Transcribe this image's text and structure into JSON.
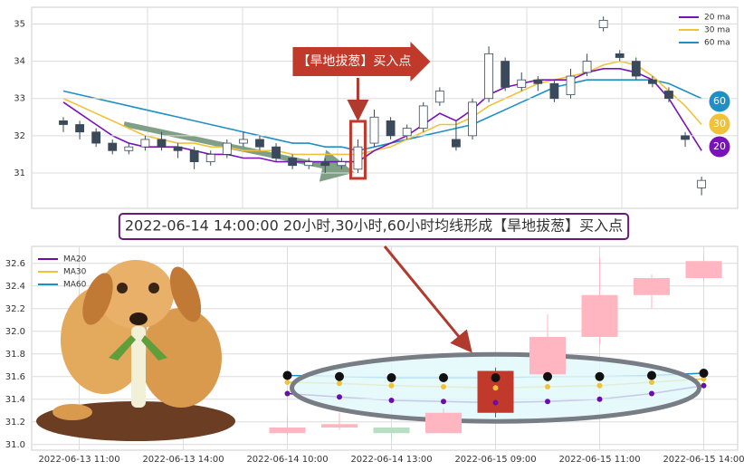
{
  "chart_data": [
    {
      "type": "candlestick",
      "open": [
        32.4,
        32.3,
        32.1,
        31.8,
        31.6,
        31.7,
        31.9,
        31.7,
        31.6,
        31.3,
        31.5,
        31.8,
        31.9,
        31.7,
        31.4,
        31.2,
        31.3,
        31.2,
        31.1,
        31.8,
        32.4,
        32.0,
        32.2,
        32.9,
        31.9,
        32.0,
        33.0,
        34.0,
        33.3,
        33.5,
        33.4,
        33.1,
        33.7,
        34.9,
        34.2,
        34.0,
        33.5,
        33.2,
        32.0,
        30.6
      ],
      "high": [
        32.5,
        32.4,
        32.2,
        31.9,
        31.8,
        32.0,
        32.1,
        31.8,
        31.7,
        31.6,
        31.9,
        32.1,
        32.0,
        31.8,
        31.5,
        31.4,
        31.4,
        31.4,
        31.9,
        32.7,
        32.5,
        32.3,
        32.9,
        33.3,
        32.4,
        33.0,
        34.4,
        34.1,
        33.7,
        33.6,
        33.5,
        33.8,
        34.2,
        35.2,
        34.3,
        34.1,
        33.6,
        33.3,
        32.1,
        30.9
      ],
      "low": [
        32.1,
        31.9,
        31.7,
        31.5,
        31.5,
        31.6,
        31.6,
        31.4,
        31.1,
        31.2,
        31.4,
        31.7,
        31.6,
        31.3,
        31.1,
        31.1,
        31.0,
        31.1,
        31.0,
        31.7,
        31.9,
        31.9,
        32.1,
        32.8,
        31.6,
        31.9,
        32.9,
        33.2,
        33.2,
        33.2,
        32.9,
        33.0,
        33.6,
        34.8,
        34.0,
        33.5,
        33.3,
        32.9,
        31.7,
        30.4
      ],
      "close": [
        32.3,
        32.1,
        31.8,
        31.6,
        31.7,
        31.9,
        31.7,
        31.6,
        31.3,
        31.5,
        31.8,
        31.9,
        31.7,
        31.4,
        31.2,
        31.3,
        31.2,
        31.3,
        31.7,
        32.5,
        32.0,
        32.2,
        32.8,
        33.2,
        31.7,
        32.9,
        34.2,
        33.3,
        33.5,
        33.4,
        33.0,
        33.6,
        34.0,
        35.1,
        34.1,
        33.6,
        33.4,
        33.0,
        31.9,
        30.8
      ],
      "up_color": "#ffffff",
      "down_color": "#3b4a5a",
      "highlight_color": "#c0392b",
      "series": [
        {
          "name": "20 ma",
          "tag": "20",
          "color": "#7b11b8",
          "values": [
            32.9,
            32.6,
            32.3,
            32.0,
            31.8,
            31.7,
            31.7,
            31.7,
            31.6,
            31.5,
            31.5,
            31.4,
            31.4,
            31.3,
            31.3,
            31.3,
            31.3,
            31.3,
            31.3,
            31.6,
            31.8,
            32.0,
            32.3,
            32.6,
            32.4,
            32.7,
            33.1,
            33.3,
            33.4,
            33.5,
            33.5,
            33.5,
            33.7,
            33.8,
            33.8,
            33.7,
            33.5,
            33.0,
            32.3,
            31.6
          ]
        },
        {
          "name": "30 ma",
          "tag": "30",
          "color": "#f0c23b",
          "values": [
            33.0,
            32.8,
            32.6,
            32.4,
            32.2,
            32.0,
            31.9,
            31.8,
            31.8,
            31.7,
            31.7,
            31.6,
            31.6,
            31.6,
            31.5,
            31.5,
            31.5,
            31.5,
            31.5,
            31.6,
            31.7,
            31.9,
            32.1,
            32.3,
            32.3,
            32.5,
            32.8,
            33.0,
            33.2,
            33.4,
            33.5,
            33.6,
            33.7,
            33.9,
            34.0,
            33.9,
            33.6,
            33.2,
            32.8,
            32.3
          ]
        },
        {
          "name": "60 ma",
          "tag": "60",
          "color": "#1f8fc4",
          "values": [
            33.2,
            33.1,
            33.0,
            32.9,
            32.8,
            32.7,
            32.6,
            32.5,
            32.4,
            32.3,
            32.2,
            32.1,
            32.0,
            31.9,
            31.8,
            31.8,
            31.7,
            31.7,
            31.6,
            31.7,
            31.8,
            31.9,
            32.0,
            32.1,
            32.2,
            32.3,
            32.5,
            32.7,
            32.9,
            33.1,
            33.3,
            33.4,
            33.5,
            33.5,
            33.5,
            33.5,
            33.5,
            33.4,
            33.2,
            33.0
          ]
        }
      ],
      "annotation": {
        "index": 18,
        "text": "【旱地拔葱】买入点"
      },
      "ylim": [
        30.05,
        35.45
      ],
      "yticks": [
        31,
        32,
        33,
        34,
        35
      ],
      "grid": true,
      "legend": "upper right"
    },
    {
      "type": "candlestick",
      "categories": [
        null,
        "2022-06-13 11:00",
        null,
        "2022-06-13 14:00",
        null,
        "2022-06-14 10:00",
        null,
        "2022-06-14 13:00",
        null,
        "2022-06-15 09:00",
        null,
        "2022-06-15 11:00",
        null,
        "2022-06-15 14:00"
      ],
      "open": [
        null,
        null,
        null,
        null,
        null,
        31.1,
        31.15,
        31.15,
        31.1,
        31.28,
        31.62,
        31.95,
        32.32,
        32.47
      ],
      "high": [
        null,
        null,
        null,
        null,
        null,
        31.25,
        31.28,
        31.15,
        31.32,
        31.68,
        32.15,
        32.65,
        32.5,
        32.67
      ],
      "low": [
        null,
        null,
        null,
        null,
        null,
        31.08,
        31.13,
        31.05,
        31.1,
        31.24,
        31.55,
        31.88,
        32.2,
        32.45
      ],
      "close": [
        null,
        null,
        null,
        null,
        null,
        31.15,
        31.18,
        31.1,
        31.28,
        31.65,
        31.95,
        32.32,
        32.47,
        32.62
      ],
      "up_color": "#ffb6c1",
      "down_color": "#b8dfc4",
      "highlight_color": "#c0392b",
      "series": [
        {
          "name": "MA20",
          "color": "#6a0dad",
          "values": [
            null,
            null,
            null,
            null,
            null,
            31.45,
            31.42,
            31.39,
            31.38,
            31.37,
            31.38,
            31.4,
            31.45,
            31.52
          ]
        },
        {
          "name": "MA30",
          "color": "#f0c23b",
          "values": [
            null,
            null,
            null,
            null,
            null,
            31.55,
            31.54,
            31.52,
            31.51,
            31.5,
            31.51,
            31.52,
            31.55,
            31.58
          ]
        },
        {
          "name": "MA60",
          "color": "#1f8fc4",
          "values": [
            null,
            null,
            null,
            null,
            null,
            31.61,
            31.6,
            31.59,
            31.59,
            31.59,
            31.6,
            31.6,
            31.61,
            31.63
          ]
        }
      ],
      "annotation": {
        "index": 9,
        "text": "2022-06-14 14:00:00 20小时,30小时,60小时均线形成【旱地拔葱】买入点"
      },
      "ylim": [
        30.95,
        32.75
      ],
      "yticks": [
        {
          "value": 31,
          "label": "31.0"
        },
        31.2,
        31.4,
        31.6,
        31.8,
        {
          "value": 32,
          "label": "32.0"
        },
        32.2,
        32.4,
        32.6
      ],
      "grid": true,
      "legend": "upper left"
    }
  ]
}
